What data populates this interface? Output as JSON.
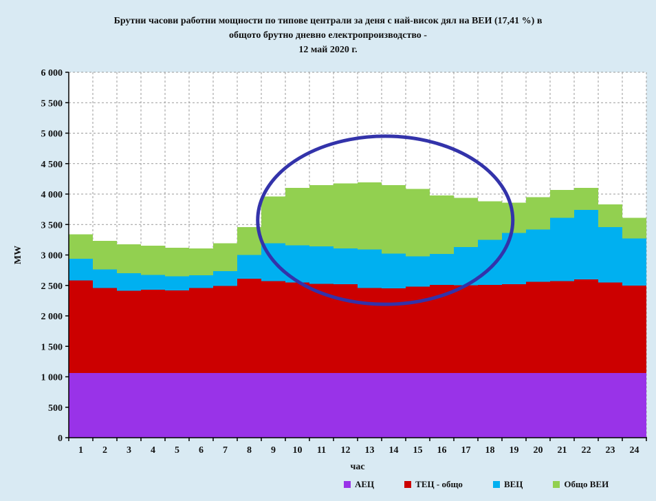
{
  "title": {
    "line1": "Брутни часови работни мощности по типове централи за деня с най-висок дял на ВЕИ (17,41 %) в",
    "line2": "общото брутно дневно електропроизводство -",
    "line3": "12 май 2020 г."
  },
  "chart_data": {
    "type": "area",
    "stacked": true,
    "x": [
      1,
      2,
      3,
      4,
      5,
      6,
      7,
      8,
      9,
      10,
      11,
      12,
      13,
      14,
      15,
      16,
      17,
      18,
      19,
      20,
      21,
      22,
      23,
      24
    ],
    "xlabel": "час",
    "ylabel": "MW",
    "ylim": [
      0,
      6000
    ],
    "ytick_step": 500,
    "grid": true,
    "legend_position": "bottom",
    "series": [
      {
        "name": "АЕЦ",
        "color": "#9933e8",
        "values": [
          1060,
          1060,
          1060,
          1060,
          1060,
          1060,
          1060,
          1060,
          1060,
          1060,
          1060,
          1060,
          1060,
          1060,
          1060,
          1060,
          1060,
          1060,
          1060,
          1060,
          1060,
          1060,
          1060,
          1060
        ]
      },
      {
        "name": "ТЕЦ - общо",
        "color": "#cc0000",
        "values": [
          1520,
          1400,
          1350,
          1370,
          1360,
          1400,
          1430,
          1550,
          1510,
          1490,
          1465,
          1460,
          1400,
          1390,
          1420,
          1450,
          1445,
          1450,
          1460,
          1500,
          1510,
          1540,
          1490,
          1440
        ]
      },
      {
        "name": "ВЕЦ",
        "color": "#00b0f0",
        "values": [
          360,
          300,
          290,
          245,
          230,
          205,
          245,
          390,
          620,
          610,
          615,
          590,
          630,
          575,
          495,
          505,
          625,
          740,
          840,
          860,
          1040,
          1140,
          910,
          770
        ]
      },
      {
        "name": "Общо ВЕИ",
        "color": "#92d050",
        "values": [
          400,
          470,
          475,
          480,
          470,
          440,
          455,
          460,
          770,
          940,
          1005,
          1065,
          1100,
          1120,
          1110,
          960,
          810,
          630,
          500,
          530,
          460,
          360,
          370,
          340
        ]
      }
    ],
    "stacked_totals": [
      3340,
      3230,
      3175,
      3155,
      3120,
      3105,
      3190,
      3460,
      3960,
      4100,
      4145,
      4175,
      4190,
      4145,
      4085,
      3975,
      3940,
      3880,
      3860,
      3950,
      4070,
      4100,
      3830,
      3610
    ],
    "annotation": {
      "type": "ellipse",
      "color": "#3333aa",
      "stroke_width": 5,
      "center_hour": 13.15,
      "center_mw": 3570,
      "radius_hours": 5.3,
      "radius_mw": 1380
    }
  },
  "colors": {
    "background": "#d9eaf3",
    "plot_background": "#ffffff",
    "grid": "#999999",
    "axis": "#000000",
    "text": "#111111"
  }
}
